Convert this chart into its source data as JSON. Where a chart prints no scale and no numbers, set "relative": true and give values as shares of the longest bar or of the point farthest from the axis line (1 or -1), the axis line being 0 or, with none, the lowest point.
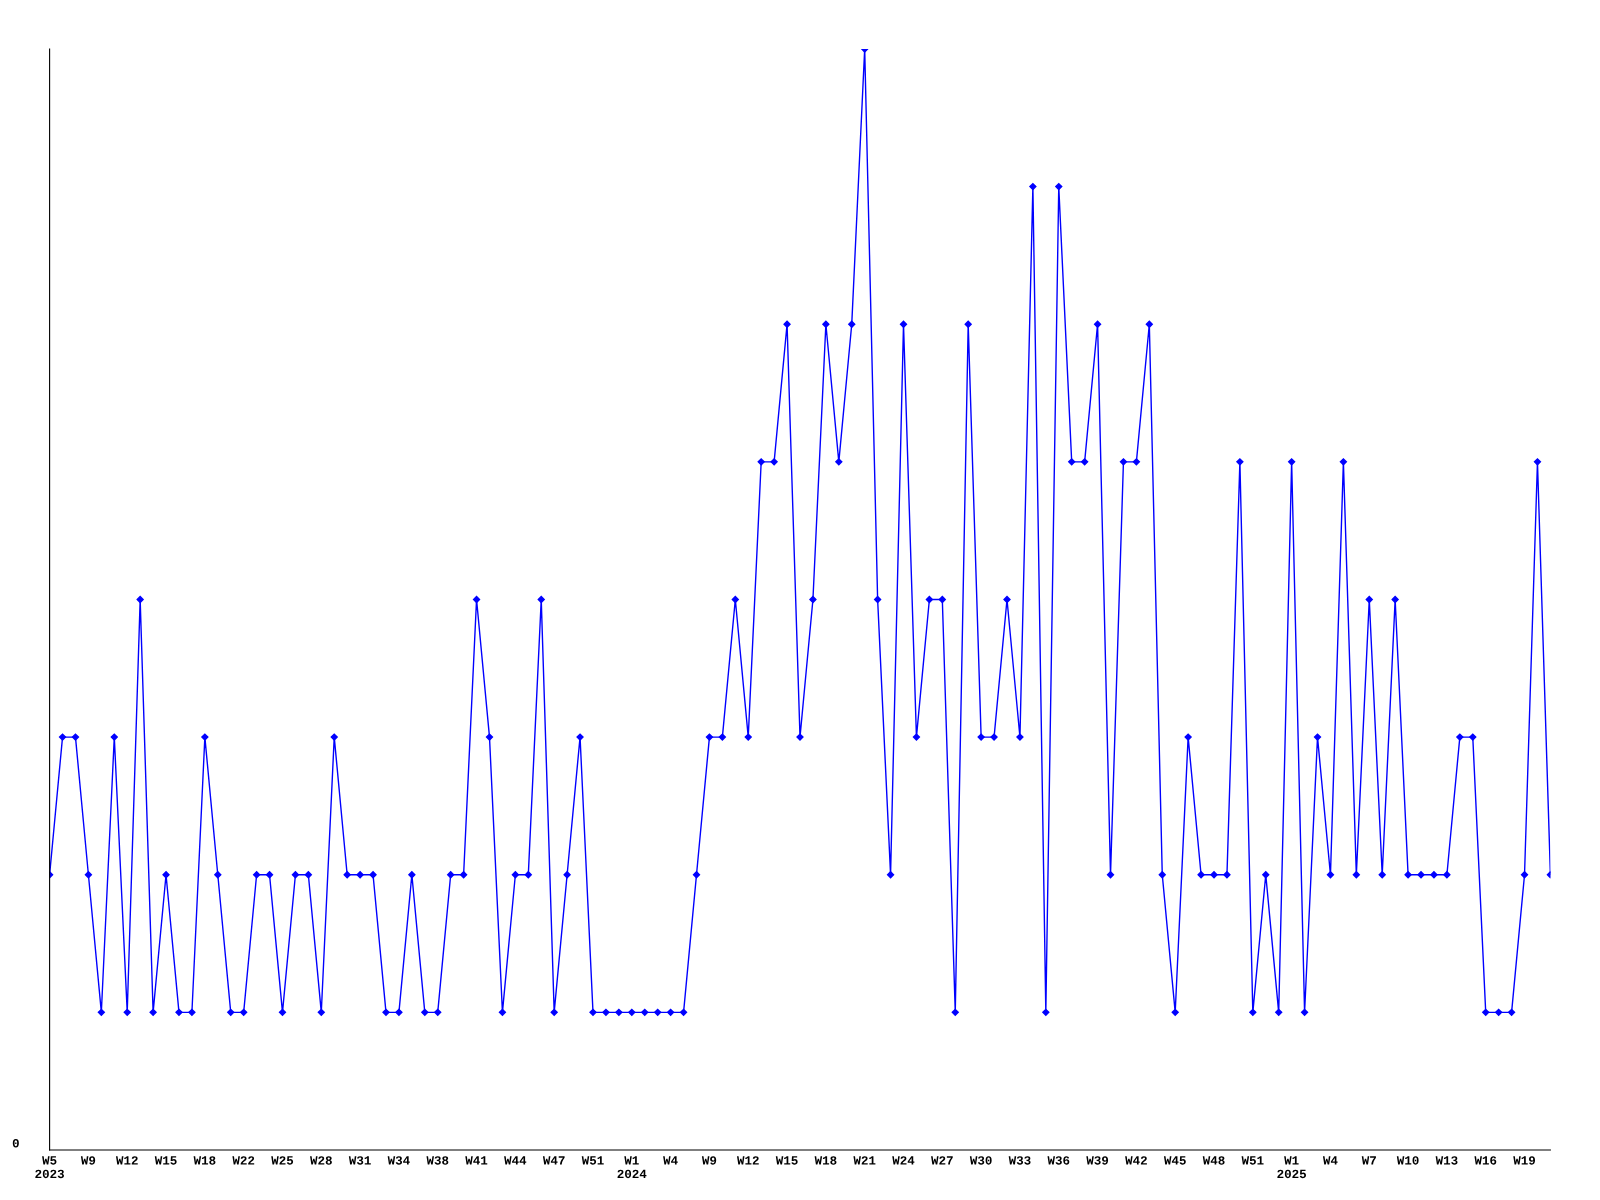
{
  "chart_data": {
    "type": "line",
    "relative": true,
    "marker": "diamond",
    "line_style": "solid",
    "grid": false,
    "legend": false,
    "annotations": [
      "0"
    ],
    "categories": [
      "W5\n2023",
      null,
      null,
      "W9",
      null,
      null,
      "W12",
      null,
      null,
      "W15",
      null,
      null,
      "W18",
      null,
      null,
      "W22",
      null,
      null,
      "W25",
      null,
      null,
      "W28",
      null,
      null,
      "W31",
      null,
      null,
      "W34",
      null,
      null,
      "W38",
      null,
      null,
      "W41",
      null,
      null,
      "W44",
      null,
      null,
      "W47",
      null,
      null,
      "W51",
      null,
      null,
      "W1\n2024",
      null,
      null,
      "W4",
      null,
      null,
      "W9",
      null,
      null,
      "W12",
      null,
      null,
      "W15",
      null,
      null,
      "W18",
      null,
      null,
      "W21",
      null,
      null,
      "W24",
      null,
      null,
      "W27",
      null,
      null,
      "W30",
      null,
      null,
      "W33",
      null,
      null,
      "W36",
      null,
      null,
      "W39",
      null,
      null,
      "W42",
      null,
      null,
      "W45",
      null,
      null,
      "W48",
      null,
      null,
      "W51",
      null,
      null,
      "W1\n2025",
      null,
      null,
      "W4",
      null,
      null,
      "W7",
      null,
      null,
      "W10",
      null,
      null,
      "W13",
      null,
      null,
      "W16",
      null,
      null,
      "W19",
      null,
      null
    ],
    "series": [
      {
        "color": "#0000ff",
        "values": [
          0.25,
          0.375,
          0.375,
          0.25,
          0.125,
          0.375,
          0.125,
          0.5,
          0.125,
          0.25,
          0.125,
          0.125,
          0.375,
          0.25,
          0.125,
          0.125,
          0.25,
          0.25,
          0.125,
          0.25,
          0.25,
          0.125,
          0.375,
          0.25,
          0.25,
          0.25,
          0.125,
          0.125,
          0.25,
          0.125,
          0.125,
          0.25,
          0.25,
          0.5,
          0.375,
          0.125,
          0.25,
          0.25,
          0.5,
          0.125,
          0.25,
          0.375,
          0.125,
          0.125,
          0.125,
          0.125,
          0.125,
          0.125,
          0.125,
          0.125,
          0.25,
          0.375,
          0.375,
          0.5,
          0.375,
          0.625,
          0.625,
          0.75,
          0.375,
          0.5,
          0.75,
          0.625,
          0.75,
          1,
          0.5,
          0.25,
          0.75,
          0.375,
          0.5,
          0.5,
          0.125,
          0.75,
          0.375,
          0.375,
          0.5,
          0.375,
          0.875,
          0.125,
          0.875,
          0.625,
          0.625,
          0.75,
          0.25,
          0.625,
          0.625,
          0.75,
          0.25,
          0.125,
          0.375,
          0.25,
          0.25,
          0.25,
          0.625,
          0.125,
          0.25,
          0.125,
          0.625,
          0.125,
          0.375,
          0.25,
          0.625,
          0.25,
          0.5,
          0.25,
          0.5,
          0.25,
          0.25,
          0.25,
          0.25,
          0.375,
          0.375,
          0.125,
          0.125,
          0.125,
          0.25,
          0.625,
          0.25
        ]
      }
    ]
  }
}
